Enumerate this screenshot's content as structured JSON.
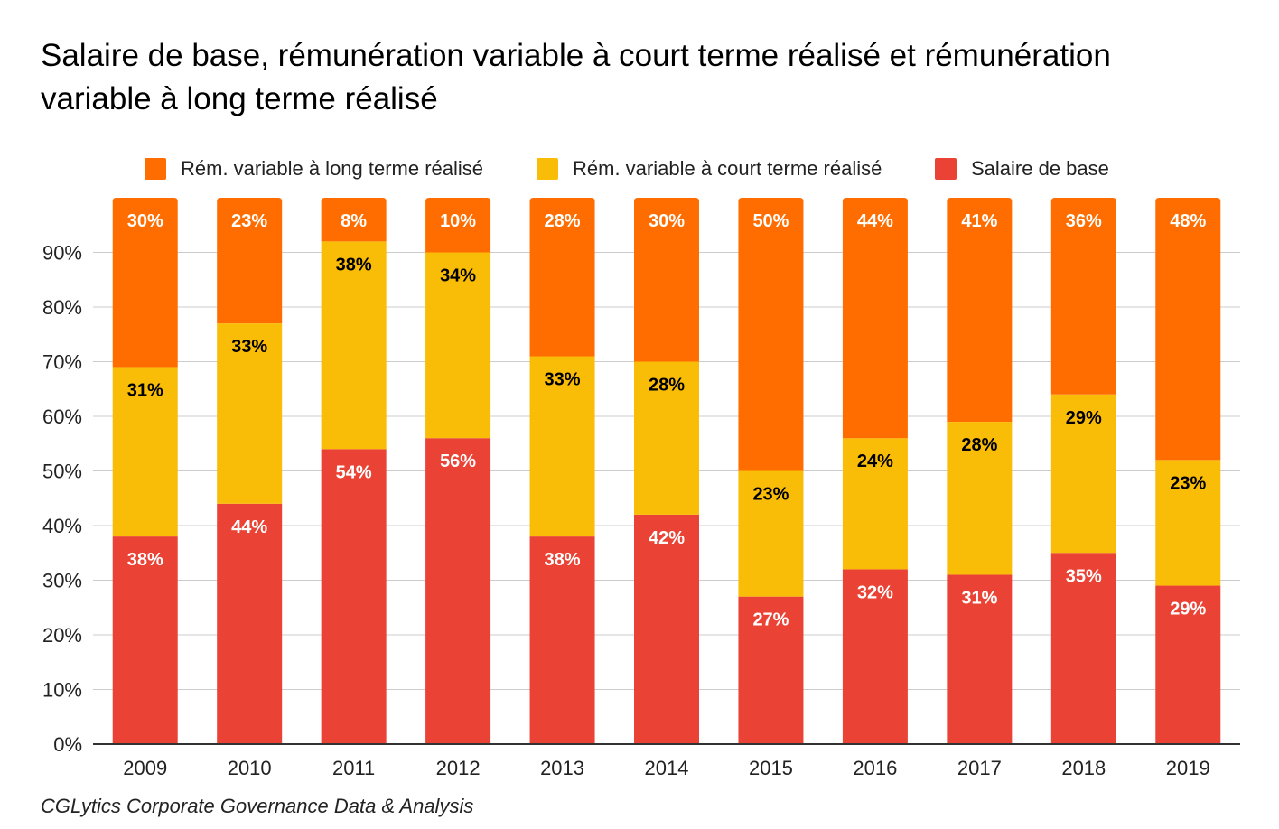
{
  "title": "Salaire de base, rémunération variable à court terme réalisé et rémunération variable à long terme réalisé",
  "source": "CGLytics Corporate Governance Data & Analysis",
  "legend": [
    {
      "label": "Rém. variable à long terme réalisé",
      "color": "#ff6d01"
    },
    {
      "label": "Rém. variable à court terme réalisé",
      "color": "#f9bc07"
    },
    {
      "label": "Salaire de base",
      "color": "#ea4335"
    }
  ],
  "chart_data": {
    "type": "bar",
    "stacked": true,
    "categories": [
      "2009",
      "2010",
      "2011",
      "2012",
      "2013",
      "2014",
      "2015",
      "2016",
      "2017",
      "2018",
      "2019"
    ],
    "series": [
      {
        "name": "Salaire de base",
        "color": "#ea4335",
        "label_color": "#ffffff",
        "values": [
          38,
          44,
          54,
          56,
          38,
          42,
          27,
          32,
          31,
          35,
          29
        ]
      },
      {
        "name": "Rém. variable à court terme réalisé",
        "color": "#f9bc07",
        "label_color": "#000000",
        "values": [
          31,
          33,
          38,
          34,
          33,
          28,
          23,
          24,
          28,
          29,
          23
        ]
      },
      {
        "name": "Rém. variable à long terme réalisé",
        "color": "#ff6d01",
        "label_color": "#ffffff",
        "values": [
          30,
          23,
          8,
          10,
          28,
          30,
          50,
          44,
          41,
          36,
          48
        ]
      }
    ],
    "yticks": [
      "0%",
      "10%",
      "20%",
      "30%",
      "40%",
      "50%",
      "60%",
      "70%",
      "80%",
      "90%"
    ],
    "ylim": [
      0,
      100
    ],
    "value_suffix": "%",
    "grid": true,
    "legend_position": "top"
  }
}
